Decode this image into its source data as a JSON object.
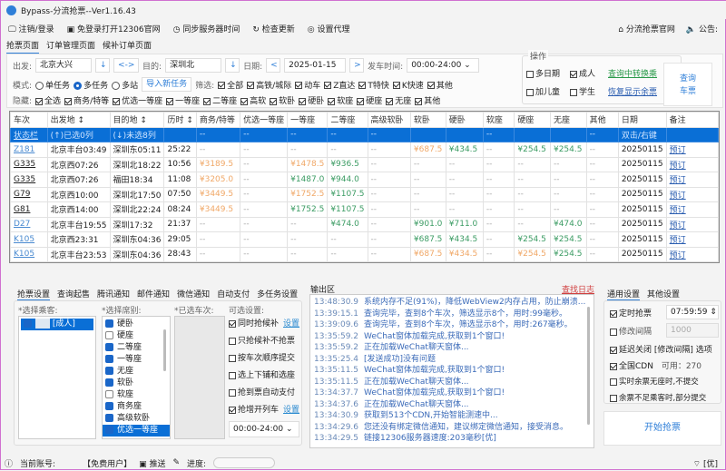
{
  "app": {
    "title": "Bypass-分流抢票--Ver1.16.43"
  },
  "menu": [
    "注销/登录",
    "免登录打开12306官网",
    "同步服务器时间",
    "检查更新",
    "设置代理"
  ],
  "menu_right": [
    "分流抢票官网",
    "公告:"
  ],
  "page_tabs": [
    "抢票页面",
    "订单管理页面",
    "候补订单页面"
  ],
  "form": {
    "from_label": "出发:",
    "from": "北京大兴",
    "swap": "<->",
    "down": "↓",
    "to_label": "目的:",
    "to": "深圳北",
    "date_label": "日期:",
    "date": "2025-01-15",
    "prev": "<",
    "next": ">",
    "time_label": "发车时间:",
    "time": "00:00-24:00",
    "mode_label": "模式:",
    "modes": [
      {
        "label": "单任务",
        "on": false
      },
      {
        "label": "多任务",
        "on": true
      },
      {
        "label": "多站",
        "on": false
      }
    ],
    "import_btn": "导入新任务",
    "filter_label": "筛选:",
    "filters": [
      "全部",
      "高铁/城际",
      "动车",
      "Z直达",
      "T特快",
      "K快速",
      "其他"
    ],
    "hide_label": "隐藏:",
    "hides": [
      "全选",
      "商务/特等",
      "优选一等座",
      "一等座",
      "二等座",
      "高软",
      "软卧",
      "硬卧",
      "软座",
      "硬座",
      "无座",
      "其他"
    ]
  },
  "ops": {
    "title": "操作",
    "multi_date": "多日期",
    "adult": "成人",
    "child": "加儿童",
    "student": "学生",
    "transfer_link": "查询中转换乘",
    "restore_link": "恢复显示余票",
    "query_btn": [
      "查询",
      "车票"
    ]
  },
  "table": {
    "headers": [
      "车次",
      "出发地 ↕",
      "目的地 ↕",
      "历时 ↕",
      "商务/特等",
      "优选一等座",
      "一等座",
      "二等座",
      "高级软卧",
      "软卧",
      "硬卧",
      "软座",
      "硬座",
      "无座",
      "其他",
      "日期",
      "备注"
    ],
    "status_row": [
      "状态栏",
      "(↑)已选0列",
      "(↓)未选8列",
      "",
      "--",
      "--",
      "--",
      "--",
      "--",
      "",
      "",
      "--",
      "",
      "",
      "--",
      "双击/右键",
      ""
    ],
    "rows": [
      {
        "train": "Z181",
        "style": "l",
        "from": "北京丰台03:49",
        "to": "深圳东05:11",
        "dur": "25:22",
        "seats": [
          "--",
          "--",
          "--",
          "--",
          "--",
          [
            "¥687.5",
            "o"
          ],
          [
            "¥434.5",
            "g"
          ],
          "--",
          [
            "¥254.5",
            "g"
          ],
          [
            "¥254.5",
            "g"
          ],
          "--"
        ],
        "date": "20250115",
        "note": "预订"
      },
      {
        "train": "G335",
        "style": "d",
        "from": "北京西07:26",
        "to": "深圳北18:22",
        "dur": "10:56",
        "seats": [
          [
            "¥3189.5",
            "o"
          ],
          "--",
          [
            "¥1478.5",
            "o"
          ],
          [
            "¥936.5",
            "g"
          ],
          "--",
          "--",
          "--",
          "--",
          "--",
          "--",
          "--"
        ],
        "date": "20250115",
        "note": "预订"
      },
      {
        "train": "G335",
        "style": "d",
        "from": "北京西07:26",
        "to": "福田18:34",
        "dur": "11:08",
        "seats": [
          [
            "¥3205.0",
            "o"
          ],
          "--",
          [
            "¥1487.0",
            "g"
          ],
          [
            "¥944.0",
            "g"
          ],
          "--",
          "--",
          "--",
          "--",
          "--",
          "--",
          "--"
        ],
        "date": "20250115",
        "note": "预订"
      },
      {
        "train": "G79",
        "style": "d",
        "from": "北京西10:00",
        "to": "深圳北17:50",
        "dur": "07:50",
        "seats": [
          [
            "¥3449.5",
            "o"
          ],
          "--",
          [
            "¥1752.5",
            "o"
          ],
          [
            "¥1107.5",
            "g"
          ],
          "--",
          "--",
          "--",
          "--",
          "--",
          "--",
          "--"
        ],
        "date": "20250115",
        "note": "预订"
      },
      {
        "train": "G81",
        "style": "d",
        "from": "北京西14:00",
        "to": "深圳北22:24",
        "dur": "08:24",
        "seats": [
          [
            "¥3449.5",
            "o"
          ],
          "--",
          [
            "¥1752.5",
            "g"
          ],
          [
            "¥1107.5",
            "g"
          ],
          "--",
          "--",
          "--",
          "--",
          "--",
          "--",
          "--"
        ],
        "date": "20250115",
        "note": "预订"
      },
      {
        "train": "D27",
        "style": "l",
        "from": "北京丰台19:55",
        "to": "深圳17:32",
        "dur": "21:37",
        "seats": [
          "--",
          "--",
          "--",
          [
            "¥474.0",
            "g"
          ],
          "--",
          [
            "¥901.0",
            "g"
          ],
          [
            "¥711.0",
            "g"
          ],
          "--",
          "--",
          [
            "¥474.0",
            "g"
          ],
          "--"
        ],
        "date": "20250115",
        "note": "预订"
      },
      {
        "train": "K105",
        "style": "l",
        "from": "北京西23:31",
        "to": "深圳东04:36",
        "dur": "29:05",
        "seats": [
          "--",
          "--",
          "--",
          "--",
          "--",
          [
            "¥687.5",
            "g"
          ],
          [
            "¥434.5",
            "g"
          ],
          "--",
          [
            "¥254.5",
            "g"
          ],
          [
            "¥254.5",
            "g"
          ],
          "--"
        ],
        "date": "20250115",
        "note": "预订"
      },
      {
        "train": "K105",
        "style": "l",
        "from": "北京丰台23:53",
        "to": "深圳东04:36",
        "dur": "28:43",
        "seats": [
          "--",
          "--",
          "--",
          "--",
          "--",
          [
            "¥687.5",
            "o"
          ],
          [
            "¥434.5",
            "o"
          ],
          "--",
          [
            "¥254.5",
            "o"
          ],
          [
            "¥254.5",
            "g"
          ],
          "--"
        ],
        "date": "20250115",
        "note": "预订"
      }
    ]
  },
  "bottom_tabs": [
    "抢票设置",
    "查询起售",
    "腾讯通知",
    "邮件通知",
    "微信通知",
    "自动支付",
    "多任务设置"
  ],
  "passengers": {
    "label": "*选择乘客:",
    "items": [
      {
        "name": "[成人]",
        "checked": true
      }
    ]
  },
  "seats": {
    "label": "*选择席别:",
    "items": [
      {
        "name": "硬卧",
        "checked": true
      },
      {
        "name": "硬座",
        "checked": false
      },
      {
        "name": "二等座",
        "checked": true
      },
      {
        "name": "一等座",
        "checked": true
      },
      {
        "name": "无座",
        "checked": true
      },
      {
        "name": "软卧",
        "checked": true
      },
      {
        "name": "软座",
        "checked": false
      },
      {
        "name": "商务座",
        "checked": true
      },
      {
        "name": "高级软卧",
        "checked": true
      },
      {
        "name": "优选一等座",
        "checked": true
      }
    ]
  },
  "selected_trains": {
    "label": "*已选车次:"
  },
  "options": {
    "label": "可选设置:",
    "items": [
      {
        "name": "同时抢候补",
        "checked": true,
        "link": "设置"
      },
      {
        "name": "只抢候补不抢票",
        "checked": false
      },
      {
        "name": "按车次顺序提交",
        "checked": false
      },
      {
        "name": "选上下铺和选座",
        "checked": false
      },
      {
        "name": "抢到票自动支付",
        "checked": false
      },
      {
        "name": "抢增开列车",
        "checked": true,
        "link": "设置"
      }
    ],
    "time": "00:00-24:00"
  },
  "output": {
    "label": "输出区",
    "find_log": "查找日志",
    "logs": [
      [
        "13:48:30.9",
        "系统内存不足(91%)，降低WebView2内存占用，防止崩溃..."
      ],
      [
        "13:39:15.1",
        "查询完毕，查到8个车次，筛选显示8个，用时:99毫秒。"
      ],
      [
        "13:39:09.6",
        "查询完毕，查到8个车次，筛选显示8个，用时:267毫秒。"
      ],
      [
        "13:35:59.2",
        "WeChat窗体加载完成,获取到1个窗口!"
      ],
      [
        "13:35:59.2",
        "正在加载WeChat聊天窗体..."
      ],
      [
        "13:35:25.4",
        "[发送成功]没有问题"
      ],
      [
        "13:35:11.5",
        "WeChat窗体加载完成,获取到1个窗口!"
      ],
      [
        "13:35:11.5",
        "正在加载WeChat聊天窗体..."
      ],
      [
        "13:34:37.7",
        "WeChat窗体加载完成,获取到1个窗口!"
      ],
      [
        "13:34:37.6",
        "正在加载WeChat聊天窗体..."
      ],
      [
        "13:34:30.9",
        "获取到513个CDN,开始智能测速中..."
      ],
      [
        "13:34:29.6",
        "您还没有绑定微信通知，建议绑定微信通知，接受消息。"
      ],
      [
        "13:34:29.5",
        "链接12306服务器速度:203毫秒[优]"
      ]
    ]
  },
  "general": {
    "tabs": [
      "通用设置",
      "其他设置"
    ],
    "timed": "定时抢票",
    "timed_value": "07:59:59",
    "interval": "修改间隔",
    "interval_value": "1000",
    "delay_close": "延迟关闭 [修改间隔] 选项",
    "cdn": "全国CDN",
    "cdn_avail": "可用：270",
    "opt1": "实时余票无座时,不提交",
    "opt2": "余票不足乘客时,部分提交",
    "start_btn": "开始抢票"
  },
  "status": {
    "account_label": "当前账号:",
    "user": "【免费用户】",
    "push": "推送",
    "progress_label": "进度:",
    "progress": 0,
    "signal": "[优]"
  }
}
